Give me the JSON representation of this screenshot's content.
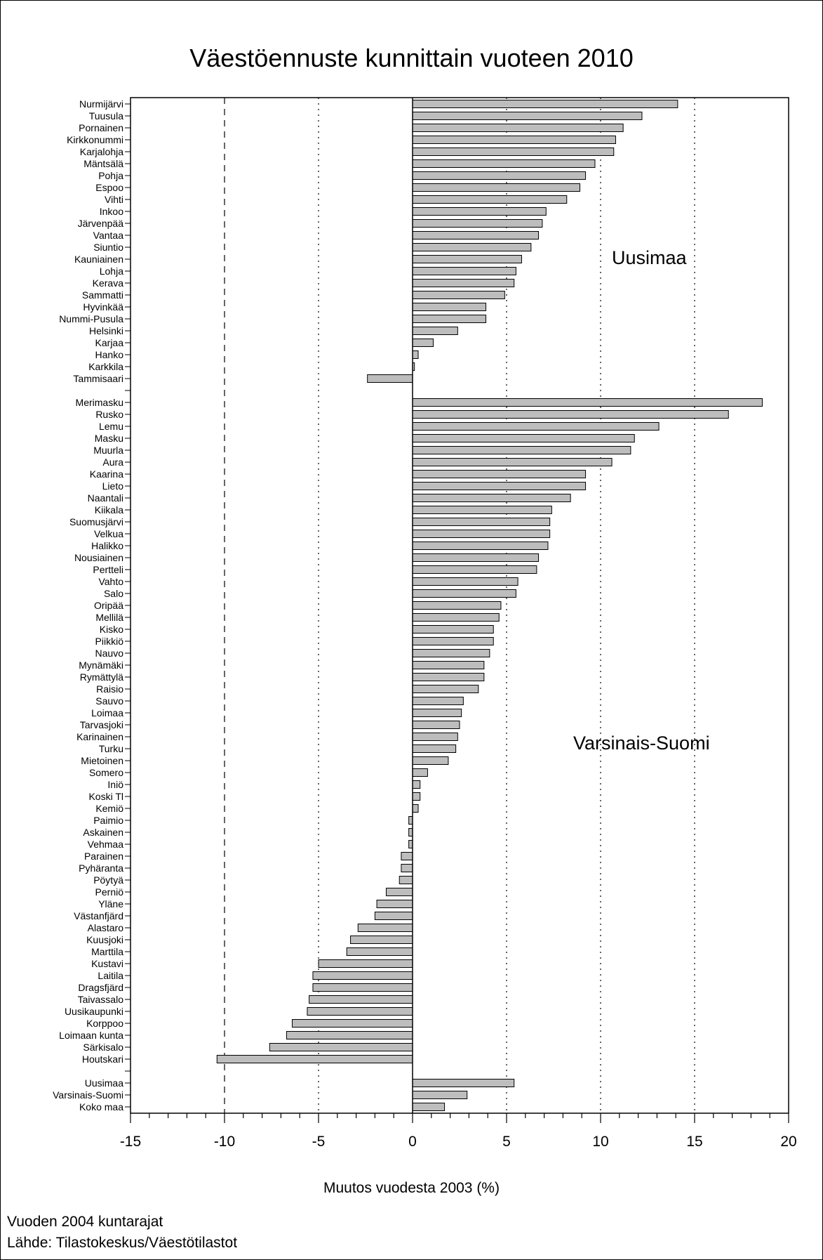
{
  "chart_data": {
    "type": "bar",
    "orientation": "horizontal",
    "title": "Väestöennuste kunnittain vuoteen 2010",
    "xlabel": "Muutos vuodesta 2003 (%)",
    "ylabel": "",
    "xlim": [
      -15,
      20
    ],
    "xticks": [
      "-15",
      "-10",
      "-5",
      "0",
      "5",
      "10",
      "15",
      "20"
    ],
    "grid": "vertical reference lines at -10, -5, 5, 10, 15",
    "bar_color": "#bdbdbd",
    "groups": [
      {
        "name": "Uusimaa",
        "categories": [
          "Nurmijärvi",
          "Tuusula",
          "Pornainen",
          "Kirkkonummi",
          "Karjalohja",
          "Mäntsälä",
          "Pohja",
          "Espoo",
          "Vihti",
          "Inkoo",
          "Järvenpää",
          "Vantaa",
          "Siuntio",
          "Kauniainen",
          "Lohja",
          "Kerava",
          "Sammatti",
          "Hyvinkää",
          "Nummi-Pusula",
          "Helsinki",
          "Karjaa",
          "Hanko",
          "Karkkila",
          "Tammisaari"
        ],
        "values": [
          14.1,
          12.2,
          11.2,
          10.8,
          10.7,
          9.7,
          9.2,
          8.9,
          8.2,
          7.1,
          6.9,
          6.7,
          6.3,
          5.8,
          5.5,
          5.4,
          4.9,
          3.9,
          3.9,
          2.4,
          1.1,
          0.3,
          0.1,
          -2.4
        ]
      },
      {
        "name": "Varsinais-Suomi",
        "categories": [
          "Merimasku",
          "Rusko",
          "Lemu",
          "Masku",
          "Muurla",
          "Aura",
          "Kaarina",
          "Lieto",
          "Naantali",
          "Kiikala",
          "Suomusjärvi",
          "Velkua",
          "Halikko",
          "Nousiainen",
          "Pertteli",
          "Vahto",
          "Salo",
          "Oripää",
          "Mellilä",
          "Kisko",
          "Piikkiö",
          "Nauvo",
          "Mynämäki",
          "Rymättylä",
          "Raisio",
          "Sauvo",
          "Loimaa",
          "Tarvasjoki",
          "Karinainen",
          "Turku",
          "Mietoinen",
          "Somero",
          "Iniö",
          "Koski Tl",
          "Kemiö",
          "Paimio",
          "Askainen",
          "Vehmaa",
          "Parainen",
          "Pyhäranta",
          "Pöytyä",
          "Perniö",
          "Yläne",
          "Västanfjärd",
          "Alastaro",
          "Kuusjoki",
          "Marttila",
          "Kustavi",
          "Laitila",
          "Dragsfjärd",
          "Taivassalo",
          "Uusikaupunki",
          "Korppoo",
          "Loimaan kunta",
          "Särkisalo",
          "Houtskari"
        ],
        "values": [
          18.6,
          16.8,
          13.1,
          11.8,
          11.6,
          10.6,
          9.2,
          9.2,
          8.4,
          7.4,
          7.3,
          7.3,
          7.2,
          6.7,
          6.6,
          5.6,
          5.5,
          4.7,
          4.6,
          4.3,
          4.3,
          4.1,
          3.8,
          3.8,
          3.5,
          2.7,
          2.6,
          2.5,
          2.4,
          2.3,
          1.9,
          0.8,
          0.4,
          0.4,
          0.3,
          -0.2,
          -0.2,
          -0.2,
          -0.6,
          -0.6,
          -0.7,
          -1.4,
          -1.9,
          -2.0,
          -2.9,
          -3.3,
          -3.5,
          -5.0,
          -5.3,
          -5.3,
          -5.5,
          -5.6,
          -6.4,
          -6.7,
          -7.6,
          -10.4
        ]
      },
      {
        "name": "",
        "categories": [
          "Uusimaa",
          "Varsinais-Suomi",
          "Koko maa"
        ],
        "values": [
          5.4,
          2.9,
          1.7
        ]
      }
    ],
    "annotations": [
      "Uusimaa",
      "Varsinais-Suomi"
    ]
  },
  "footer": {
    "line1": "Vuoden 2004 kuntarajat",
    "line2": "Lähde: Tilastokeskus/Väestötilastot"
  }
}
